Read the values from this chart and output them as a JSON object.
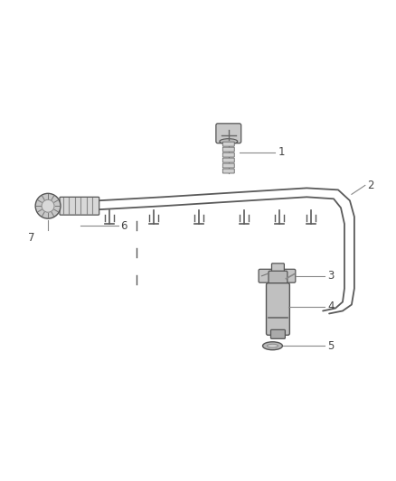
{
  "background_color": "#ffffff",
  "line_color": "#555555",
  "text_color": "#444444",
  "callout_color": "#888888",
  "fig_width": 4.38,
  "fig_height": 5.33,
  "dpi": 100,
  "rail_color": "#5a5a5a",
  "component_color": "#6a6a6a",
  "label_fontsize": 8.5,
  "lw_tube": 1.6,
  "lw_callout": 0.8
}
